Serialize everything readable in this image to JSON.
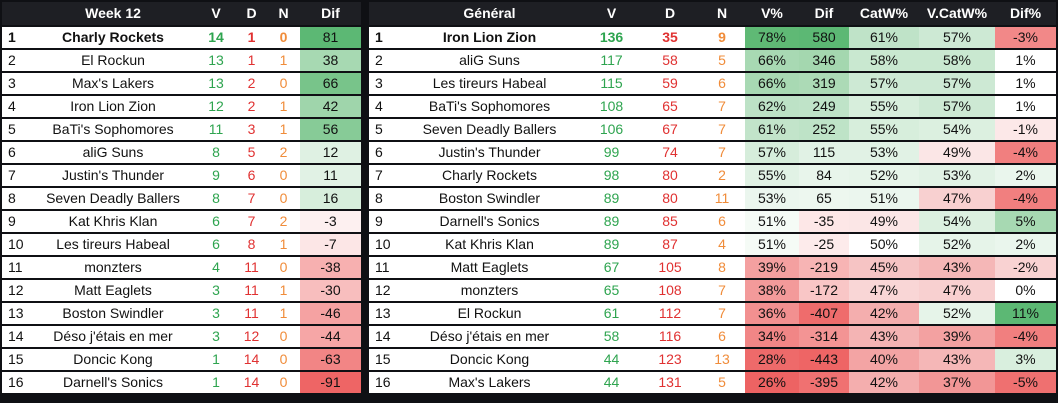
{
  "week_table": {
    "headers": [
      "",
      "Week 12",
      "V",
      "D",
      "N",
      "Dif"
    ],
    "rows": [
      {
        "rank": "1",
        "team": "Charly Rockets",
        "v": "14",
        "d": "1",
        "n": "0",
        "dif": "81",
        "dif_bg": "#5cb874"
      },
      {
        "rank": "2",
        "team": "El Rockun",
        "v": "13",
        "d": "1",
        "n": "1",
        "dif": "38",
        "dif_bg": "#a7d9b2"
      },
      {
        "rank": "3",
        "team": "Max's Lakers",
        "v": "13",
        "d": "2",
        "n": "0",
        "dif": "66",
        "dif_bg": "#78c48a"
      },
      {
        "rank": "4",
        "team": "Iron Lion Zion",
        "v": "12",
        "d": "2",
        "n": "1",
        "dif": "42",
        "dif_bg": "#9fd5ab"
      },
      {
        "rank": "5",
        "team": "BaTi's Sophomores",
        "v": "11",
        "d": "3",
        "n": "1",
        "dif": "56",
        "dif_bg": "#87cb97"
      },
      {
        "rank": "6",
        "team": "aliG Suns",
        "v": "8",
        "d": "5",
        "n": "2",
        "dif": "12",
        "dif_bg": "#dff1e3"
      },
      {
        "rank": "7",
        "team": "Justin's Thunder",
        "v": "9",
        "d": "6",
        "n": "0",
        "dif": "11",
        "dif_bg": "#e1f2e5"
      },
      {
        "rank": "8",
        "team": "Seven Deadly Ballers",
        "v": "8",
        "d": "7",
        "n": "0",
        "dif": "16",
        "dif_bg": "#d7eedc"
      },
      {
        "rank": "9",
        "team": "Kat Khris Klan",
        "v": "6",
        "d": "7",
        "n": "2",
        "dif": "-3",
        "dif_bg": "#fdf0f0"
      },
      {
        "rank": "10",
        "team": "Les tireurs Habeal",
        "v": "6",
        "d": "8",
        "n": "1",
        "dif": "-7",
        "dif_bg": "#fce6e6"
      },
      {
        "rank": "11",
        "team": "monzters",
        "v": "4",
        "d": "11",
        "n": "0",
        "dif": "-38",
        "dif_bg": "#f7b0b0"
      },
      {
        "rank": "12",
        "team": "Matt Eaglets",
        "v": "3",
        "d": "11",
        "n": "1",
        "dif": "-30",
        "dif_bg": "#f8bebe"
      },
      {
        "rank": "13",
        "team": "Boston Swindler",
        "v": "3",
        "d": "11",
        "n": "1",
        "dif": "-46",
        "dif_bg": "#f5a2a2"
      },
      {
        "rank": "14",
        "team": "Déso j'étais en mer",
        "v": "3",
        "d": "12",
        "n": "0",
        "dif": "-44",
        "dif_bg": "#f6a6a6"
      },
      {
        "rank": "15",
        "team": "Doncic Kong",
        "v": "1",
        "d": "14",
        "n": "0",
        "dif": "-63",
        "dif_bg": "#f28585"
      },
      {
        "rank": "16",
        "team": "Darnell's Sonics",
        "v": "1",
        "d": "14",
        "n": "0",
        "dif": "-91",
        "dif_bg": "#ee6565"
      }
    ]
  },
  "general_table": {
    "headers": [
      "",
      "Général",
      "V",
      "D",
      "N",
      "V%",
      "Dif",
      "CatW%",
      "V.CatW%",
      "Dif%"
    ],
    "rows": [
      {
        "rank": "1",
        "team": "Iron Lion Zion",
        "v": "136",
        "d": "35",
        "n": "9",
        "vpct": "78%",
        "vpct_bg": "#5fb975",
        "dif": "580",
        "dif_bg": "#5cb874",
        "catw": "61%",
        "catw_bg": "#bfe3c8",
        "vcatw": "57%",
        "vcatw_bg": "#cde9d4",
        "difpct": "-3%",
        "difpct_bg": "#f28888"
      },
      {
        "rank": "2",
        "team": "aliG Suns",
        "v": "117",
        "d": "58",
        "n": "5",
        "vpct": "66%",
        "vpct_bg": "#a8d9b3",
        "dif": "346",
        "dif_bg": "#a4d7af",
        "catw": "58%",
        "catw_bg": "#c9e8d0",
        "vcatw": "58%",
        "vcatw_bg": "#c9e8d0",
        "difpct": "1%",
        "difpct_bg": "#ffffff"
      },
      {
        "rank": "3",
        "team": "Les tireurs Habeal",
        "v": "115",
        "d": "59",
        "n": "6",
        "vpct": "66%",
        "vpct_bg": "#a8d9b3",
        "dif": "319",
        "dif_bg": "#acdab6",
        "catw": "57%",
        "catw_bg": "#cde9d4",
        "vcatw": "57%",
        "vcatw_bg": "#cde9d4",
        "difpct": "1%",
        "difpct_bg": "#ffffff"
      },
      {
        "rank": "4",
        "team": "BaTi's Sophomores",
        "v": "108",
        "d": "65",
        "n": "7",
        "vpct": "62%",
        "vpct_bg": "#bde2c6",
        "dif": "249",
        "dif_bg": "#bfe3c8",
        "catw": "55%",
        "catw_bg": "#d7eedc",
        "vcatw": "57%",
        "vcatw_bg": "#cde9d4",
        "difpct": "1%",
        "difpct_bg": "#ffffff"
      },
      {
        "rank": "5",
        "team": "Seven Deadly Ballers",
        "v": "106",
        "d": "67",
        "n": "7",
        "vpct": "61%",
        "vpct_bg": "#c2e4ca",
        "dif": "252",
        "dif_bg": "#bee3c7",
        "catw": "55%",
        "catw_bg": "#d7eedc",
        "vcatw": "54%",
        "vcatw_bg": "#dcf0e0",
        "difpct": "-1%",
        "difpct_bg": "#fce8e8"
      },
      {
        "rank": "6",
        "team": "Justin's Thunder",
        "v": "99",
        "d": "74",
        "n": "7",
        "vpct": "57%",
        "vpct_bg": "#d6eddb",
        "dif": "115",
        "dif_bg": "#e1f2e5",
        "catw": "53%",
        "catw_bg": "#e1f2e5",
        "vcatw": "49%",
        "vcatw_bg": "#fbe6e6",
        "difpct": "-4%",
        "difpct_bg": "#f17f7f"
      },
      {
        "rank": "7",
        "team": "Charly Rockets",
        "v": "98",
        "d": "80",
        "n": "2",
        "vpct": "55%",
        "vpct_bg": "#e1f2e5",
        "dif": "84",
        "dif_bg": "#e8f5eb",
        "catw": "52%",
        "catw_bg": "#e6f4e9",
        "vcatw": "53%",
        "vcatw_bg": "#e1f2e5",
        "difpct": "2%",
        "difpct_bg": "#eaf6ed"
      },
      {
        "rank": "8",
        "team": "Boston Swindler",
        "v": "89",
        "d": "80",
        "n": "11",
        "vpct": "53%",
        "vpct_bg": "#ebf6ee",
        "dif": "65",
        "dif_bg": "#edf7ef",
        "catw": "51%",
        "catw_bg": "#ebf6ee",
        "vcatw": "47%",
        "vcatw_bg": "#f8d0d0",
        "difpct": "-4%",
        "difpct_bg": "#f17f7f"
      },
      {
        "rank": "9",
        "team": "Darnell's Sonics",
        "v": "89",
        "d": "85",
        "n": "6",
        "vpct": "51%",
        "vpct_bg": "#f5fbf6",
        "dif": "-35",
        "dif_bg": "#fde7e7",
        "catw": "49%",
        "catw_bg": "#fbe6e6",
        "vcatw": "54%",
        "vcatw_bg": "#dcf0e0",
        "difpct": "5%",
        "difpct_bg": "#a7d9b2"
      },
      {
        "rank": "10",
        "team": "Kat Khris Klan",
        "v": "89",
        "d": "87",
        "n": "4",
        "vpct": "51%",
        "vpct_bg": "#f5fbf6",
        "dif": "-25",
        "dif_bg": "#fdebeb",
        "catw": "50%",
        "catw_bg": "#ffffff",
        "vcatw": "52%",
        "vcatw_bg": "#e6f4e9",
        "difpct": "2%",
        "difpct_bg": "#eaf6ed"
      },
      {
        "rank": "11",
        "team": "Matt Eaglets",
        "v": "67",
        "d": "105",
        "n": "8",
        "vpct": "39%",
        "vpct_bg": "#f4a0a0",
        "dif": "-219",
        "dif_bg": "#f7b4b4",
        "catw": "45%",
        "catw_bg": "#f6c4c4",
        "vcatw": "43%",
        "vcatw_bg": "#f5b7b7",
        "difpct": "-2%",
        "difpct_bg": "#f9d2d2"
      },
      {
        "rank": "12",
        "team": "monzters",
        "v": "65",
        "d": "108",
        "n": "7",
        "vpct": "38%",
        "vpct_bg": "#f39a9a",
        "dif": "-172",
        "dif_bg": "#f9c6c6",
        "catw": "47%",
        "catw_bg": "#f9d6d6",
        "vcatw": "47%",
        "vcatw_bg": "#f8d0d0",
        "difpct": "0%",
        "difpct_bg": "#ffffff"
      },
      {
        "rank": "13",
        "team": "El Rockun",
        "v": "61",
        "d": "112",
        "n": "7",
        "vpct": "36%",
        "vpct_bg": "#f29090",
        "dif": "-407",
        "dif_bg": "#ef6c6c",
        "catw": "42%",
        "catw_bg": "#f4aeae",
        "vcatw": "52%",
        "vcatw_bg": "#e6f4e9",
        "difpct": "11%",
        "difpct_bg": "#5cb874"
      },
      {
        "rank": "14",
        "team": "Déso j'étais en mer",
        "v": "58",
        "d": "116",
        "n": "6",
        "vpct": "34%",
        "vpct_bg": "#f18686",
        "dif": "-314",
        "dif_bg": "#f39494",
        "catw": "43%",
        "catw_bg": "#f4b4b4",
        "vcatw": "39%",
        "vcatw_bg": "#f3a1a1",
        "difpct": "-4%",
        "difpct_bg": "#f17f7f"
      },
      {
        "rank": "15",
        "team": "Doncic Kong",
        "v": "44",
        "d": "123",
        "n": "13",
        "vpct": "28%",
        "vpct_bg": "#ee6a6a",
        "dif": "-443",
        "dif_bg": "#ee6565",
        "catw": "40%",
        "catw_bg": "#f3a4a4",
        "vcatw": "43%",
        "vcatw_bg": "#f5b7b7",
        "difpct": "3%",
        "difpct_bg": "#d9efde"
      },
      {
        "rank": "16",
        "team": "Max's Lakers",
        "v": "44",
        "d": "131",
        "n": "5",
        "vpct": "26%",
        "vpct_bg": "#ed6363",
        "dif": "-395",
        "dif_bg": "#f07171",
        "catw": "42%",
        "catw_bg": "#f4aeae",
        "vcatw": "37%",
        "vcatw_bg": "#f29696",
        "difpct": "-5%",
        "difpct_bg": "#ef7070"
      }
    ]
  }
}
